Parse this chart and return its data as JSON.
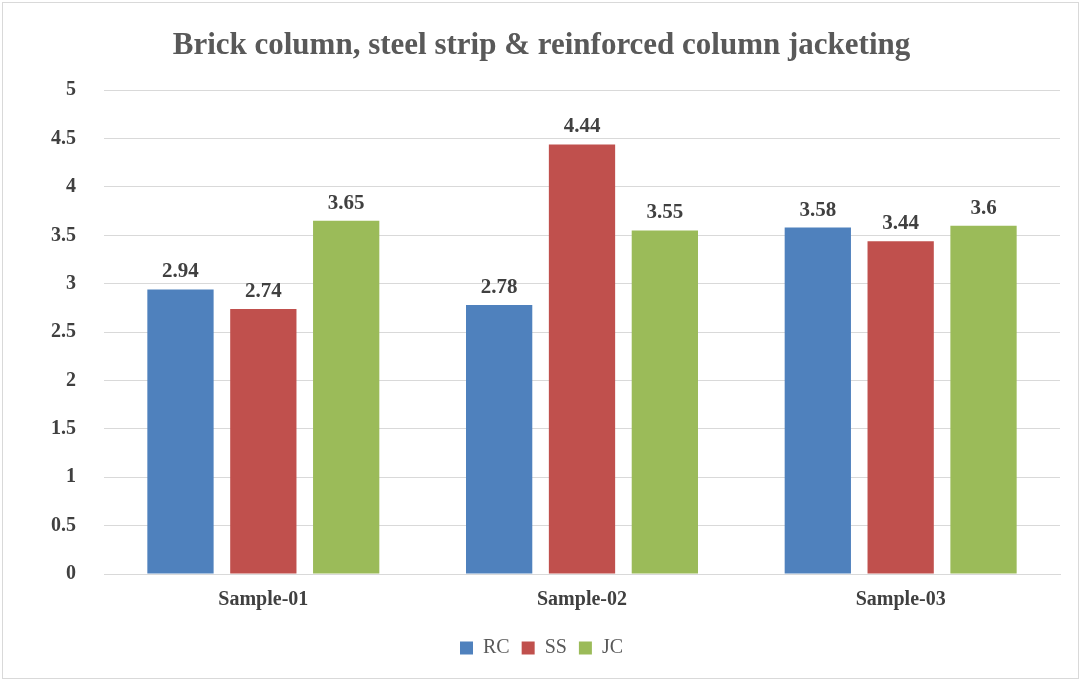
{
  "chart_data": {
    "type": "bar",
    "title": "Brick column, steel strip & reinforced column jacketing",
    "categories": [
      "Sample-01",
      "Sample-02",
      "Sample-03"
    ],
    "series": [
      {
        "name": "RC",
        "color": "#4f81bd",
        "values": [
          2.94,
          2.78,
          3.58
        ]
      },
      {
        "name": "SS",
        "color": "#c0504d",
        "values": [
          2.74,
          4.44,
          3.44
        ]
      },
      {
        "name": "JC",
        "color": "#9bbb59",
        "values": [
          3.65,
          3.55,
          3.6
        ]
      }
    ],
    "ylim": [
      0,
      5
    ],
    "yticks": [
      0,
      0.5,
      1,
      1.5,
      2,
      2.5,
      3,
      3.5,
      4,
      4.5,
      5
    ],
    "grid": "y",
    "legend": "bottom",
    "data_labels": true
  }
}
